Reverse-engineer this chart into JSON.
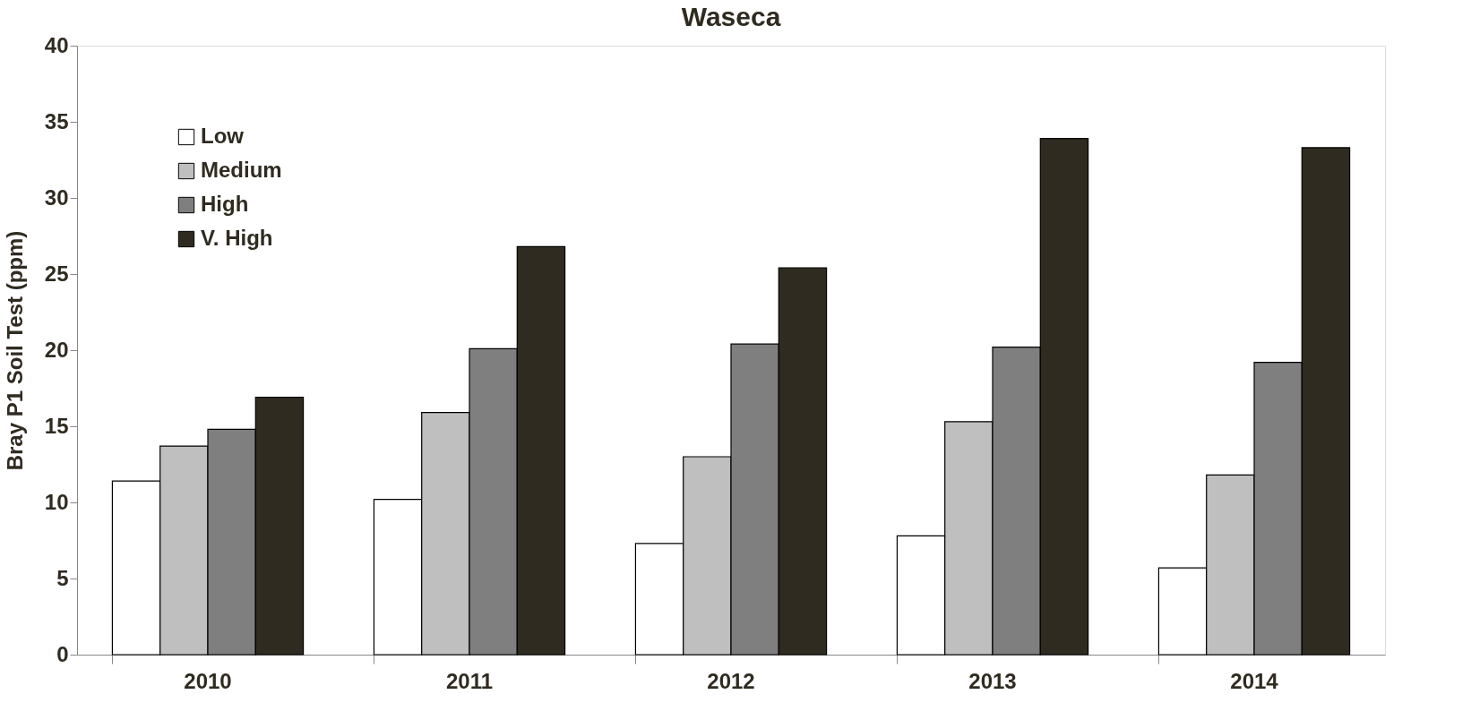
{
  "chart_data": {
    "type": "bar",
    "title": "Waseca",
    "ylabel": "Bray  P1 Soil Test  (ppm)",
    "categories": [
      "2010",
      "2011",
      "2012",
      "2013",
      "2014"
    ],
    "series": [
      {
        "name": "Low",
        "color": "#ffffff",
        "values": [
          11.4,
          10.2,
          7.3,
          7.8,
          5.7
        ]
      },
      {
        "name": "Medium",
        "color": "#bfbfbf",
        "values": [
          13.7,
          15.9,
          13.0,
          15.3,
          11.8
        ]
      },
      {
        "name": "High",
        "color": "#7f7f7f",
        "values": [
          14.8,
          20.1,
          20.4,
          20.2,
          19.2
        ]
      },
      {
        "name": "V. High",
        "color": "#2f2b20",
        "values": [
          16.9,
          26.8,
          25.4,
          33.9,
          33.3
        ]
      }
    ],
    "ylim": [
      0,
      40
    ],
    "yticks": [
      0,
      5,
      10,
      15,
      20,
      25,
      30,
      35,
      40
    ],
    "grid": false,
    "legend": "top left"
  }
}
